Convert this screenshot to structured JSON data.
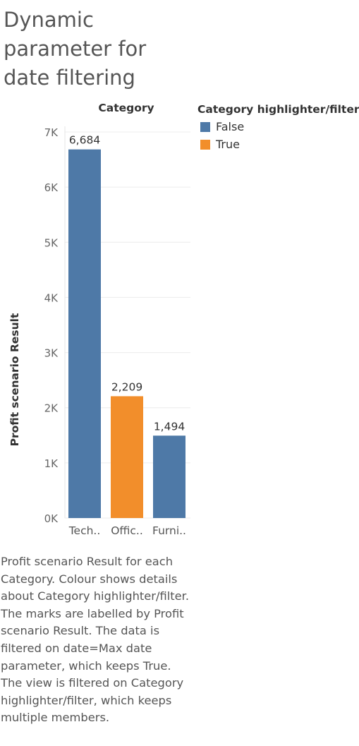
{
  "page": {
    "title": "Dynamic parameter for date filtering",
    "caption": "Profit scenario Result for each Category.  Colour shows details about Category highlighter/filter.  The marks are labelled by Profit scenario Result. The data is filtered on date=Max date parameter, which keeps True. The view is filtered on Category highlighter/filter, which keeps multiple members."
  },
  "legend": {
    "title": "Category highlighter/filter",
    "items": [
      {
        "label": "False",
        "color": "#4e79a7"
      },
      {
        "label": "True",
        "color": "#f28e2b"
      }
    ]
  },
  "chart_data": {
    "type": "bar",
    "title": "Category",
    "xlabel": "",
    "ylabel": "Profit scenario Result",
    "categories": [
      "Tech..",
      "Offic..",
      "Furni.."
    ],
    "values": [
      6684,
      2209,
      1494
    ],
    "value_labels": [
      "6,684",
      "2,209",
      "1,494"
    ],
    "highlight": [
      "False",
      "True",
      "False"
    ],
    "colors": {
      "False": "#4e79a7",
      "True": "#f28e2b"
    },
    "yticks": [
      0,
      1000,
      2000,
      3000,
      4000,
      5000,
      6000,
      7000
    ],
    "ytick_labels": [
      "0K",
      "1K",
      "2K",
      "3K",
      "4K",
      "5K",
      "6K",
      "7K"
    ],
    "ylim": [
      0,
      7000
    ],
    "grid": true,
    "legend_position": "top-right"
  }
}
